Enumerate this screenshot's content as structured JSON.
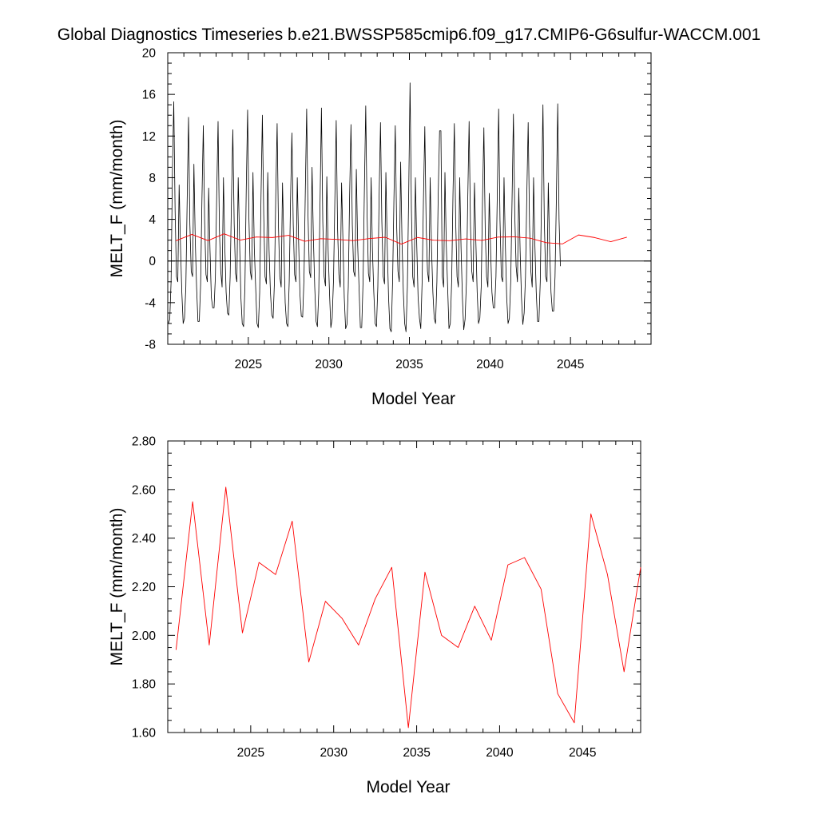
{
  "title": "Global Diagnostics Timeseries b.e21.BWSSP585cmip6.f09_g17.CMIP6-G6sulfur-WACCM.001",
  "colors": {
    "monthly": "#000000",
    "annual": "#ff0000",
    "axis": "#000000"
  },
  "chart_data": [
    {
      "type": "line",
      "xlabel": "Model Year",
      "ylabel": "MELT_F (mm/month)",
      "xlim": [
        2020.0,
        2050.0
      ],
      "ylim": [
        -8,
        20
      ],
      "x_ticks": [
        2025,
        2030,
        2035,
        2040,
        2045
      ],
      "x_tick_labels": [
        "2025",
        "2030",
        "2035",
        "2040",
        "2045"
      ],
      "y_ticks": [
        -8,
        -4,
        0,
        4,
        8,
        12,
        16,
        20
      ],
      "y_tick_labels": [
        "-8",
        "-4",
        "0",
        "4",
        "8",
        "12",
        "16",
        "20"
      ],
      "zero_line": true,
      "series": [
        {
          "style": "monthly",
          "start_year": 2020.04,
          "step": 0.0833333,
          "values": [
            -6.0,
            -5.6,
            -2.0,
            8.6,
            15.3,
            4.8,
            -1.5,
            -2.0,
            7.3,
            1.5,
            -3.0,
            -6.0,
            -5.5,
            -2.5,
            6.0,
            13.8,
            3.5,
            -1.0,
            -1.5,
            9.3,
            2.0,
            -2.5,
            -5.8,
            -5.8,
            -2.3,
            6.0,
            13.0,
            3.8,
            -1.3,
            -2.0,
            7.0,
            1.0,
            -3.5,
            -4.5,
            -4.5,
            -1.5,
            6.5,
            13.4,
            3.0,
            -1.0,
            -2.5,
            8.0,
            1.5,
            -3.0,
            -5.0,
            -5.2,
            -1.5,
            6.0,
            12.6,
            3.6,
            -1.2,
            -2.0,
            8.0,
            2.0,
            -3.5,
            -6.0,
            -6.3,
            -2.5,
            7.0,
            14.5,
            4.0,
            -1.0,
            -1.8,
            8.5,
            1.2,
            -2.5,
            -6.0,
            -6.4,
            -3.0,
            6.2,
            14.0,
            4.5,
            -1.5,
            -2.2,
            8.5,
            1.0,
            -3.0,
            -5.2,
            -5.5,
            -2.0,
            6.5,
            13.2,
            3.2,
            -1.5,
            -2.5,
            7.5,
            1.8,
            -4.0,
            -6.0,
            -6.3,
            -2.0,
            6.0,
            12.3,
            3.5,
            -1.3,
            -2.0,
            8.0,
            1.8,
            -3.2,
            -5.3,
            -5.4,
            -1.7,
            6.8,
            14.6,
            4.4,
            -1.0,
            -1.6,
            9.0,
            2.2,
            -2.5,
            -5.8,
            -6.3,
            -3.0,
            6.0,
            14.7,
            3.8,
            -1.5,
            -2.4,
            8.1,
            1.0,
            -3.0,
            -6.4,
            -5.5,
            -1.8,
            6.0,
            13.5,
            3.2,
            -1.3,
            -2.5,
            7.5,
            2.0,
            -3.5,
            -6.5,
            -6.1,
            -2.5,
            6.3,
            13.1,
            3.5,
            -1.0,
            -1.5,
            8.8,
            1.5,
            -2.5,
            -6.4,
            -6.4,
            -2.0,
            7.0,
            14.9,
            4.5,
            -1.2,
            -2.0,
            8.0,
            1.0,
            -3.0,
            -6.0,
            -6.3,
            -2.5,
            6.5,
            13.3,
            3.8,
            -1.5,
            -2.2,
            8.5,
            1.5,
            -3.5,
            -6.5,
            -6.8,
            -2.0,
            6.0,
            13.0,
            3.5,
            -1.0,
            -2.0,
            9.5,
            2.0,
            -3.0,
            -6.0,
            -6.8,
            -2.5,
            6.5,
            17.1,
            5.0,
            -1.5,
            -2.5,
            8.0,
            1.5,
            -3.5,
            -5.5,
            -6.5,
            -2.0,
            6.0,
            12.9,
            3.5,
            -1.0,
            -2.0,
            8.0,
            1.2,
            -3.0,
            -5.5,
            -6.0,
            -2.0,
            6.5,
            12.5,
            12.5,
            -1.5,
            -2.5,
            8.5,
            1.5,
            -2.5,
            -6.5,
            -6.0,
            -2.0,
            6.5,
            13.2,
            3.8,
            -1.5,
            -2.5,
            8.0,
            1.2,
            -3.5,
            -6.6,
            -5.6,
            -2.0,
            6.0,
            13.4,
            3.5,
            -1.0,
            -2.0,
            7.5,
            2.0,
            -3.0,
            -6.0,
            -5.5,
            -2.5,
            6.0,
            12.8,
            3.0,
            -1.5,
            -2.5,
            6.5,
            1.0,
            -3.0,
            -4.5,
            -4.5,
            -1.5,
            6.5,
            14.6,
            4.0,
            -1.5,
            -2.0,
            8.0,
            1.5,
            -3.5,
            -6.0,
            -5.5,
            -2.0,
            6.0,
            14.1,
            4.5,
            -0.5,
            -2.0,
            7.0,
            1.0,
            -3.5,
            -6.1,
            -5.0,
            -1.5,
            6.5,
            13.3,
            3.5,
            -1.0,
            -2.5,
            8.0,
            1.5,
            -3.0,
            -5.8,
            -5.8,
            -2.0,
            6.5,
            15.0,
            4.0,
            -1.5,
            -2.0,
            7.5,
            1.0,
            -3.0,
            -4.8,
            -4.8,
            -1.5,
            6.0,
            15.1,
            4.0,
            -0.5
          ]
        },
        {
          "style": "annual",
          "name": "",
          "x": [
            2020.5,
            2021.5,
            2022.5,
            2023.5,
            2024.5,
            2025.5,
            2026.5,
            2027.5,
            2028.5,
            2029.5,
            2030.5,
            2031.5,
            2032.5,
            2033.5,
            2034.5,
            2035.5,
            2036.5,
            2037.5,
            2038.5,
            2039.5,
            2040.5,
            2041.5,
            2042.5,
            2043.5,
            2044.5,
            2045.5,
            2046.5,
            2047.5,
            2048.5
          ],
          "values": [
            1.94,
            2.55,
            1.96,
            2.61,
            2.01,
            2.3,
            2.25,
            2.47,
            1.89,
            2.14,
            2.07,
            1.96,
            2.15,
            2.28,
            1.62,
            2.26,
            2.0,
            1.95,
            2.12,
            1.98,
            2.29,
            2.32,
            2.19,
            1.76,
            1.64,
            2.5,
            2.25,
            1.85,
            2.28
          ]
        }
      ]
    },
    {
      "type": "line",
      "xlabel": "Model Year",
      "ylabel": "MELT_F (mm/month)",
      "xlim": [
        2020.0,
        2048.5
      ],
      "ylim": [
        1.6,
        2.8
      ],
      "x_ticks": [
        2025,
        2030,
        2035,
        2040,
        2045
      ],
      "x_tick_labels": [
        "2025",
        "2030",
        "2035",
        "2040",
        "2045"
      ],
      "y_ticks": [
        1.6,
        1.8,
        2.0,
        2.2,
        2.4,
        2.6,
        2.8
      ],
      "y_tick_labels": [
        "1.60",
        "1.80",
        "2.00",
        "2.20",
        "2.40",
        "2.60",
        "2.80"
      ],
      "series": [
        {
          "style": "annual",
          "name": "",
          "x": [
            2020.5,
            2021.5,
            2022.5,
            2023.5,
            2024.5,
            2025.5,
            2026.5,
            2027.5,
            2028.5,
            2029.5,
            2030.5,
            2031.5,
            2032.5,
            2033.5,
            2034.5,
            2035.5,
            2036.5,
            2037.5,
            2038.5,
            2039.5,
            2040.5,
            2041.5,
            2042.5,
            2043.5,
            2044.5,
            2045.5,
            2046.5,
            2047.5,
            2048.5
          ],
          "values": [
            1.94,
            2.55,
            1.96,
            2.61,
            2.01,
            2.3,
            2.25,
            2.47,
            1.89,
            2.14,
            2.07,
            1.96,
            2.15,
            2.28,
            1.62,
            2.26,
            2.0,
            1.95,
            2.12,
            1.98,
            2.29,
            2.32,
            2.19,
            1.76,
            1.64,
            2.5,
            2.25,
            1.85,
            2.28
          ]
        }
      ]
    }
  ]
}
